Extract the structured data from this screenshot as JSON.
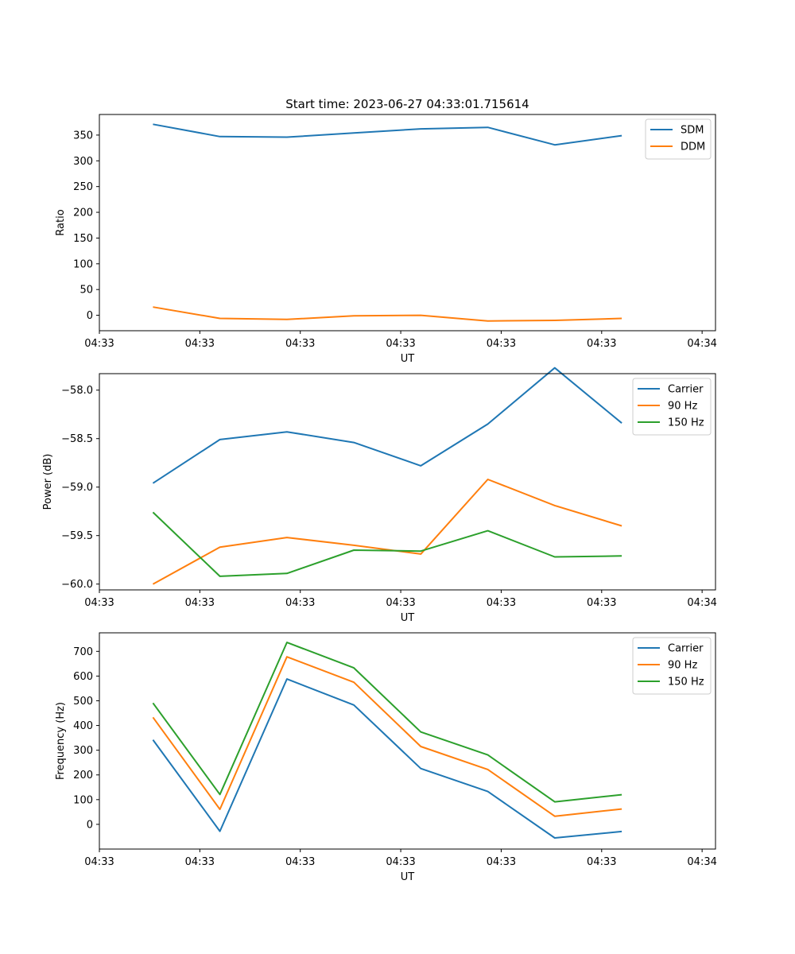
{
  "figure": {
    "title": "Start time: 2023-06-27 04:33:01.715614"
  },
  "chart_data": [
    {
      "type": "line",
      "title": "Start time: 2023-06-27 04:33:01.715614",
      "xlabel": "UT",
      "ylabel": "Ratio",
      "x": [
        1,
        2,
        3,
        4,
        5,
        6,
        7,
        8
      ],
      "xlim": [
        0.2,
        9.4
      ],
      "x_ticks": [
        0.2,
        1.7,
        3.2,
        4.7,
        6.2,
        7.7,
        9.2
      ],
      "x_tick_labels": [
        "04:33",
        "04:33",
        "04:33",
        "04:33",
        "04:33",
        "04:33",
        "04:34"
      ],
      "ylim": [
        -30,
        390
      ],
      "y_ticks": [
        0,
        50,
        100,
        150,
        200,
        250,
        300,
        350
      ],
      "y_tick_labels": [
        "0",
        "50",
        "100",
        "150",
        "200",
        "250",
        "300",
        "350"
      ],
      "legend_position": "top-right",
      "grid": false,
      "series": [
        {
          "name": "SDM",
          "color": "#1f77b4",
          "values": [
            371,
            347,
            346,
            354,
            362,
            365,
            331,
            349
          ]
        },
        {
          "name": "DDM",
          "color": "#ff7f0e",
          "values": [
            16,
            -6,
            -8,
            -1,
            0,
            -11,
            -10,
            -6
          ]
        }
      ]
    },
    {
      "type": "line",
      "xlabel": "UT",
      "ylabel": "Power (dB)",
      "x": [
        1,
        2,
        3,
        4,
        5,
        6,
        7,
        8
      ],
      "xlim": [
        0.2,
        9.4
      ],
      "x_ticks": [
        0.2,
        1.7,
        3.2,
        4.7,
        6.2,
        7.7,
        9.2
      ],
      "x_tick_labels": [
        "04:33",
        "04:33",
        "04:33",
        "04:33",
        "04:33",
        "04:33",
        "04:34"
      ],
      "ylim": [
        -60.06,
        -57.83
      ],
      "y_ticks": [
        -60.0,
        -59.5,
        -59.0,
        -58.5,
        -58.0
      ],
      "y_tick_labels": [
        "−60.0",
        "−59.5",
        "−59.0",
        "−58.5",
        "−58.0"
      ],
      "legend_position": "top-right",
      "grid": false,
      "series": [
        {
          "name": "Carrier",
          "color": "#1f77b4",
          "values": [
            -58.96,
            -58.51,
            -58.43,
            -58.54,
            -58.78,
            -58.35,
            -57.77,
            -58.34
          ]
        },
        {
          "name": "90 Hz",
          "color": "#ff7f0e",
          "values": [
            -60.0,
            -59.62,
            -59.52,
            -59.6,
            -59.69,
            -58.92,
            -59.19,
            -59.4
          ]
        },
        {
          "name": "150 Hz",
          "color": "#2ca02c",
          "values": [
            -59.26,
            -59.92,
            -59.89,
            -59.65,
            -59.66,
            -59.45,
            -59.72,
            -59.71
          ]
        }
      ]
    },
    {
      "type": "line",
      "xlabel": "UT",
      "ylabel": "Frequency (Hz)",
      "x": [
        1,
        2,
        3,
        4,
        5,
        6,
        7,
        8
      ],
      "xlim": [
        0.2,
        9.4
      ],
      "x_ticks": [
        0.2,
        1.7,
        3.2,
        4.7,
        6.2,
        7.7,
        9.2
      ],
      "x_tick_labels": [
        "04:33",
        "04:33",
        "04:33",
        "04:33",
        "04:33",
        "04:33",
        "04:34"
      ],
      "ylim": [
        -100,
        775
      ],
      "y_ticks": [
        0,
        100,
        200,
        300,
        400,
        500,
        600,
        700
      ],
      "y_tick_labels": [
        "0",
        "100",
        "200",
        "300",
        "400",
        "500",
        "600",
        "700"
      ],
      "legend_position": "top-right",
      "grid": false,
      "series": [
        {
          "name": "Carrier",
          "color": "#1f77b4",
          "values": [
            342,
            -28,
            588,
            483,
            226,
            133,
            -55,
            -29
          ]
        },
        {
          "name": "90 Hz",
          "color": "#ff7f0e",
          "values": [
            433,
            61,
            678,
            575,
            315,
            222,
            33,
            62
          ]
        },
        {
          "name": "150 Hz",
          "color": "#2ca02c",
          "values": [
            491,
            121,
            736,
            633,
            374,
            281,
            91,
            120
          ]
        }
      ]
    }
  ]
}
